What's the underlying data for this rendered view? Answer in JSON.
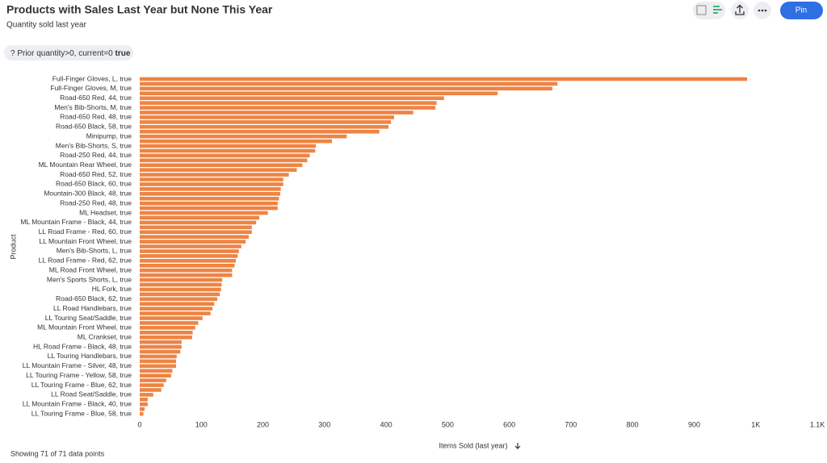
{
  "chart_data": {
    "type": "bar",
    "orientation": "horizontal",
    "title": "Products with Sales Last Year but None This Year",
    "subtitle": "Quantity sold last year",
    "x_label": "Items Sold (last year)",
    "y_label": "Product",
    "color": "#ee8443",
    "grid": false,
    "categories": [
      "Full-Finger Gloves, L, true",
      null,
      "Full-Finger Gloves, M, true",
      null,
      "Road-650 Red, 44, true",
      null,
      "Men's Bib-Shorts, M, true",
      null,
      "Road-650 Red, 48, true",
      null,
      "Road-650 Black, 58, true",
      null,
      "Minipump, true",
      null,
      "Men's Bib-Shorts, S, true",
      null,
      "Road-250 Red, 44, true",
      null,
      "ML Mountain Rear Wheel, true",
      null,
      "Road-650 Red, 52, true",
      null,
      "Road-650 Black, 60, true",
      null,
      "Mountain-300 Black, 48, true",
      null,
      "Road-250 Red, 48, true",
      null,
      "ML Headset, true",
      null,
      "ML Mountain Frame - Black, 44, true",
      null,
      "LL Road Frame - Red, 60, true",
      null,
      "LL Mountain Front Wheel, true",
      null,
      "Men's Bib-Shorts, L, true",
      null,
      "LL Road Frame - Red, 62, true",
      null,
      "ML Road Front Wheel, true",
      null,
      "Men's Sports Shorts, L, true",
      null,
      "HL Fork, true",
      null,
      "Road-650 Black, 62, true",
      null,
      "LL Road Handlebars, true",
      null,
      "LL Touring Seat/Saddle, true",
      null,
      "ML Mountain Front Wheel, true",
      null,
      "ML Crankset, true",
      null,
      "HL Road Frame - Black, 48, true",
      null,
      "LL Touring Handlebars, true",
      null,
      "LL Mountain Frame - Silver, 48, true",
      null,
      "LL Touring Frame - Yellow, 58, true",
      null,
      "LL Touring Frame - Blue, 62, true",
      null,
      "LL Road Seat/Saddle, true",
      null,
      "LL Mountain Frame - Black, 40, true",
      null,
      "LL Touring Frame - Blue, 58, true"
    ],
    "values": [
      986,
      678,
      670,
      581,
      494,
      482,
      480,
      444,
      413,
      408,
      404,
      389,
      336,
      312,
      286,
      285,
      276,
      272,
      264,
      255,
      242,
      233,
      233,
      229,
      228,
      226,
      224,
      224,
      208,
      194,
      189,
      182,
      182,
      177,
      172,
      165,
      161,
      159,
      156,
      154,
      150,
      150,
      134,
      133,
      132,
      130,
      126,
      121,
      118,
      115,
      102,
      95,
      90,
      86,
      85,
      68,
      68,
      66,
      60,
      59,
      59,
      53,
      51,
      43,
      39,
      35,
      22,
      13,
      13,
      8,
      6
    ],
    "xlim": [
      0,
      1100
    ],
    "xticks": [
      0,
      100,
      200,
      300,
      400,
      500,
      600,
      700,
      800,
      900,
      {
        "value": 1000,
        "label": "1K"
      },
      {
        "value": 1100,
        "label": "1.1K"
      }
    ]
  },
  "ui": {
    "filter_label": "? Prior quantity>0, current=0",
    "filter_value": "true",
    "footer": "Showing 71 of 71 data points",
    "pin_button": "Pin"
  }
}
